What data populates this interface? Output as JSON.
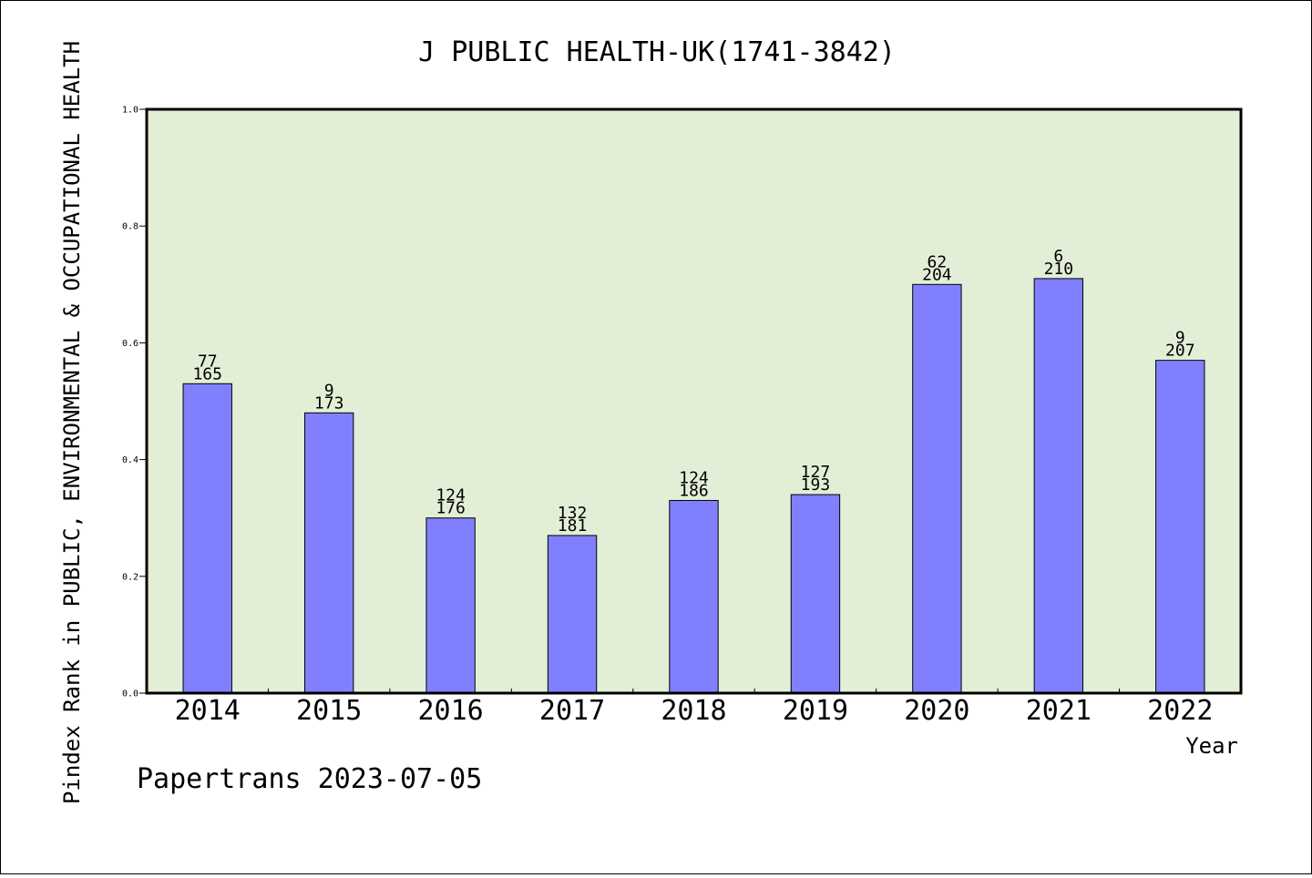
{
  "chart_data": {
    "type": "bar",
    "title": "J PUBLIC HEALTH-UK(1741-3842)",
    "xlabel": "Year",
    "ylabel": "Pindex Rank in PUBLIC, ENVIRONMENTAL & OCCUPATIONAL HEALTH",
    "ylim": [
      0,
      1.0
    ],
    "yticks": [
      "0.0",
      "0.2",
      "0.4",
      "0.6",
      "0.8",
      "1.0"
    ],
    "categories": [
      "2014",
      "2015",
      "2016",
      "2017",
      "2018",
      "2019",
      "2020",
      "2021",
      "2022"
    ],
    "values": [
      0.53,
      0.48,
      0.3,
      0.27,
      0.33,
      0.34,
      0.7,
      0.71,
      0.57
    ],
    "rank_labels": [
      "77",
      "9",
      "124",
      "132",
      "124",
      "127",
      "62",
      "6",
      "9"
    ],
    "total_labels": [
      "165",
      "173",
      "176",
      "181",
      "186",
      "193",
      "204",
      "210",
      "207"
    ],
    "grid": false,
    "colors": {
      "plot_background": "#e2efd6",
      "bar_fill": "#8080ff",
      "bar_stroke": "#000000"
    }
  },
  "footer": "Papertrans 2023-07-05"
}
